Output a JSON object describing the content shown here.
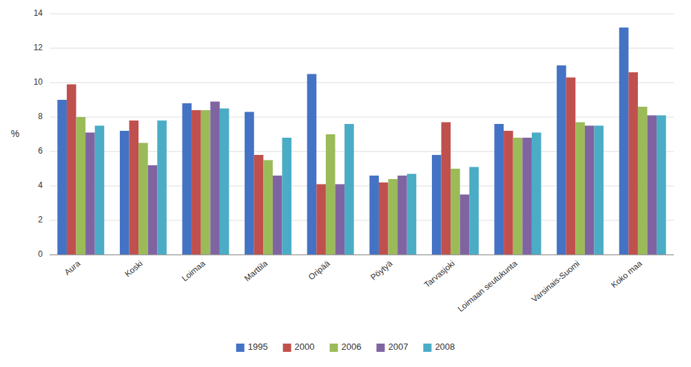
{
  "chart_data": {
    "type": "bar",
    "categories": [
      "Aura",
      "Koski",
      "Loimaa",
      "Marttila",
      "Oripää",
      "Pöytyä",
      "Tarvasjoki",
      "Loimaan seutukunta",
      "Varsinais-Suomi",
      "Koko maa"
    ],
    "series": [
      {
        "name": "1995",
        "color": "#4472C4",
        "values": [
          9.0,
          7.2,
          8.8,
          8.3,
          10.5,
          4.6,
          5.8,
          7.6,
          11.0,
          13.2
        ]
      },
      {
        "name": "2000",
        "color": "#C0504D",
        "values": [
          9.9,
          7.8,
          8.4,
          5.8,
          4.1,
          4.2,
          7.7,
          7.2,
          10.3,
          10.6
        ]
      },
      {
        "name": "2006",
        "color": "#9BBB59",
        "values": [
          8.0,
          6.5,
          8.4,
          5.5,
          7.0,
          4.4,
          5.0,
          6.8,
          7.7,
          8.6
        ]
      },
      {
        "name": "2007",
        "color": "#8064A2",
        "values": [
          7.1,
          5.2,
          8.9,
          4.6,
          4.1,
          4.6,
          3.5,
          6.8,
          7.5,
          8.1
        ]
      },
      {
        "name": "2008",
        "color": "#4BACC6",
        "values": [
          7.5,
          7.8,
          8.5,
          6.8,
          7.6,
          4.7,
          5.1,
          7.1,
          7.5,
          8.1
        ]
      }
    ],
    "ylabel": "%",
    "ylim": [
      0,
      14
    ],
    "yticks": [
      0,
      2,
      4,
      6,
      8,
      10,
      12,
      14
    ],
    "grid": true,
    "legend": "bottom"
  }
}
